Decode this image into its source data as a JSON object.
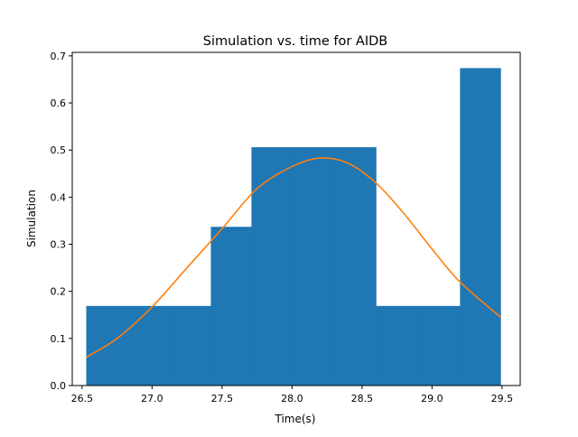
{
  "chart_data": {
    "type": "bar",
    "title": "Simulation vs. time for AIDB",
    "xlabel": "Time(s)",
    "ylabel": "Simulation",
    "xlim": [
      26.43,
      29.63
    ],
    "ylim": [
      0.0,
      0.7074
    ],
    "xticks": [
      26.5,
      27.0,
      27.5,
      28.0,
      28.5,
      29.0,
      29.5
    ],
    "xtick_labels": [
      "26.5",
      "27.0",
      "27.5",
      "28.0",
      "28.5",
      "29.0",
      "29.5"
    ],
    "yticks": [
      0.0,
      0.1,
      0.2,
      0.3,
      0.4,
      0.5,
      0.6,
      0.7
    ],
    "ytick_labels": [
      "0.0",
      "0.1",
      "0.2",
      "0.3",
      "0.4",
      "0.5",
      "0.6",
      "0.7"
    ],
    "grid": false,
    "bar_color": "#1f77b4",
    "line_color": "#ff7f0e",
    "histogram": {
      "bin_edges": [
        26.53,
        26.83,
        27.12,
        27.42,
        27.71,
        28.01,
        28.31,
        28.6,
        28.9,
        29.2,
        29.49
      ],
      "values": [
        0.169,
        0.169,
        0.169,
        0.337,
        0.506,
        0.506,
        0.506,
        0.169,
        0.169,
        0.674
      ]
    },
    "curve": {
      "x": [
        26.53,
        26.75,
        27.0,
        27.25,
        27.5,
        27.75,
        28.0,
        28.2,
        28.4,
        28.6,
        28.8,
        29.0,
        29.2,
        29.49
      ],
      "y": [
        0.06,
        0.1,
        0.167,
        0.25,
        0.333,
        0.418,
        0.465,
        0.483,
        0.472,
        0.43,
        0.365,
        0.29,
        0.22,
        0.145
      ]
    }
  }
}
